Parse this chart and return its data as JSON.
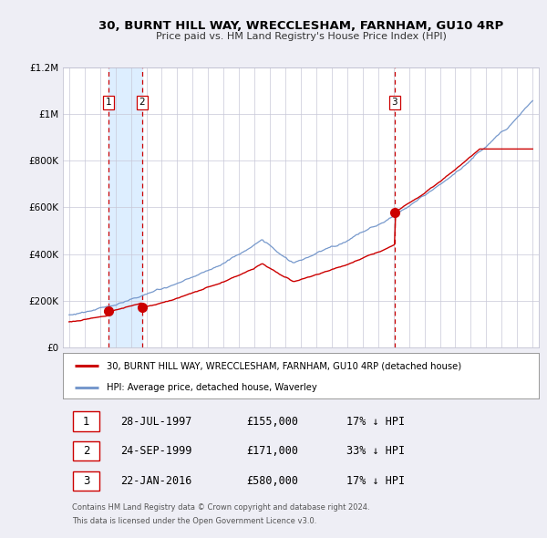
{
  "title": "30, BURNT HILL WAY, WRECCLESHAM, FARNHAM, GU10 4RP",
  "subtitle": "Price paid vs. HM Land Registry's House Price Index (HPI)",
  "background_color": "#eeeef5",
  "plot_bg_color": "#ffffff",
  "y_min": 0,
  "y_max": 1200000,
  "y_ticks": [
    0,
    200000,
    400000,
    600000,
    800000,
    1000000,
    1200000
  ],
  "y_tick_labels": [
    "£0",
    "£200K",
    "£400K",
    "£600K",
    "£800K",
    "£1M",
    "£1.2M"
  ],
  "purchase_dates_decimal": [
    1997.57,
    1999.73,
    2016.06
  ],
  "purchase_prices": [
    155000,
    171000,
    580000
  ],
  "purchase_labels": [
    "1",
    "2",
    "3"
  ],
  "vline_dates": [
    1997.57,
    1999.73,
    2016.06
  ],
  "red_line_color": "#cc0000",
  "blue_line_color": "#7799cc",
  "vline_color": "#cc0000",
  "shade_color": "#ddeeff",
  "legend_red_label": "30, BURNT HILL WAY, WRECCLESHAM, FARNHAM, GU10 4RP (detached house)",
  "legend_blue_label": "HPI: Average price, detached house, Waverley",
  "transaction_rows": [
    {
      "num": "1",
      "date": "28-JUL-1997",
      "price": "£155,000",
      "note": "17% ↓ HPI"
    },
    {
      "num": "2",
      "date": "24-SEP-1999",
      "price": "£171,000",
      "note": "33% ↓ HPI"
    },
    {
      "num": "3",
      "date": "22-JAN-2016",
      "price": "£580,000",
      "note": "17% ↓ HPI"
    }
  ],
  "footer_line1": "Contains HM Land Registry data © Crown copyright and database right 2024.",
  "footer_line2": "This data is licensed under the Open Government Licence v3.0."
}
